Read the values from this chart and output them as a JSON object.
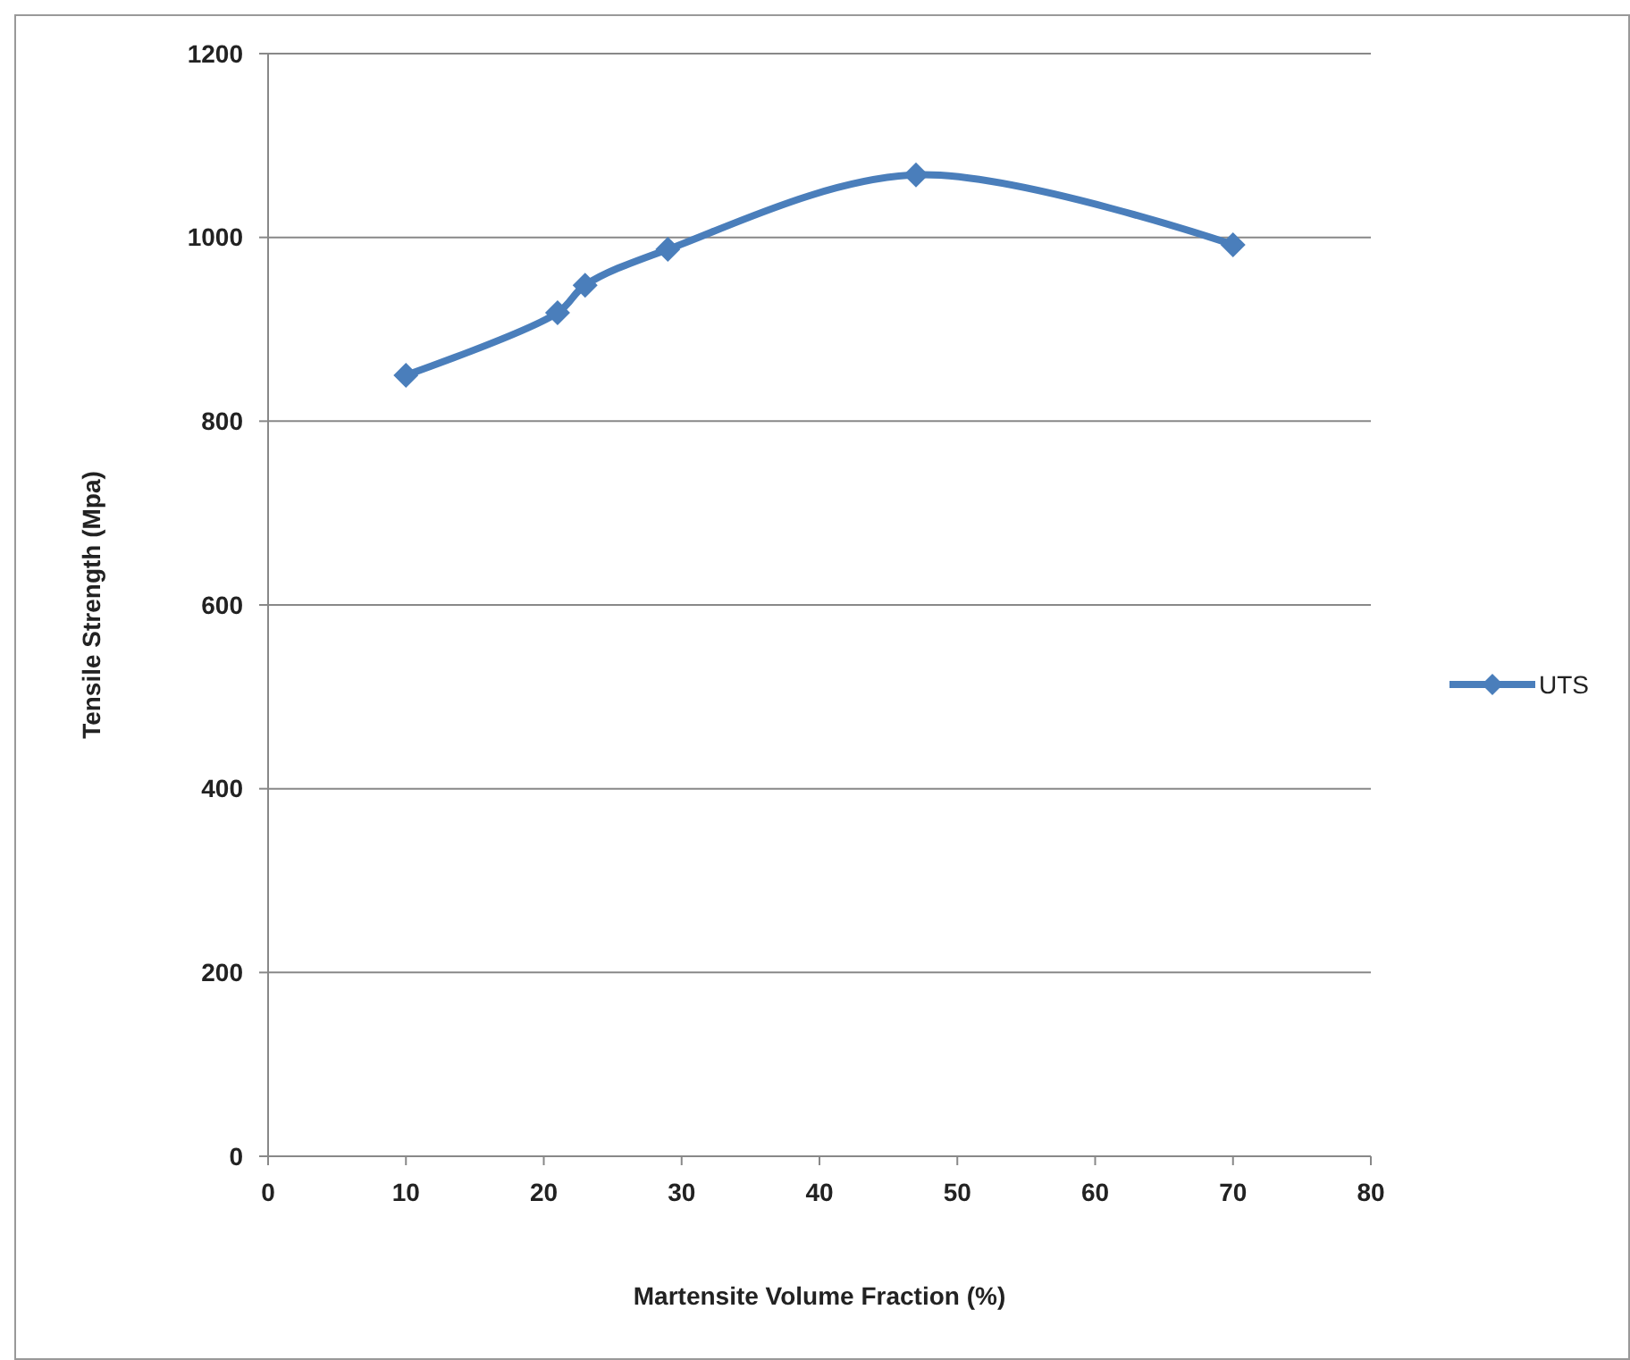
{
  "chart_data": {
    "type": "line",
    "xlabel": "Martensite Volume Fraction (%)",
    "ylabel": "Tensile Strength (Mpa)",
    "x": [
      10,
      21,
      23,
      29,
      47,
      70
    ],
    "series": [
      {
        "name": "UTS",
        "color": "#4a7ebb",
        "values": [
          850,
          918,
          948,
          987,
          1068,
          992
        ]
      }
    ],
    "xlim": [
      0,
      80
    ],
    "xticks": [
      0,
      10,
      20,
      30,
      40,
      50,
      60,
      70,
      80
    ],
    "ylim": [
      0,
      1200
    ],
    "yticks": [
      0,
      200,
      400,
      600,
      800,
      1000,
      1200
    ],
    "grid": "y",
    "legend": "right",
    "marker": "diamond",
    "line_style": "solid"
  }
}
